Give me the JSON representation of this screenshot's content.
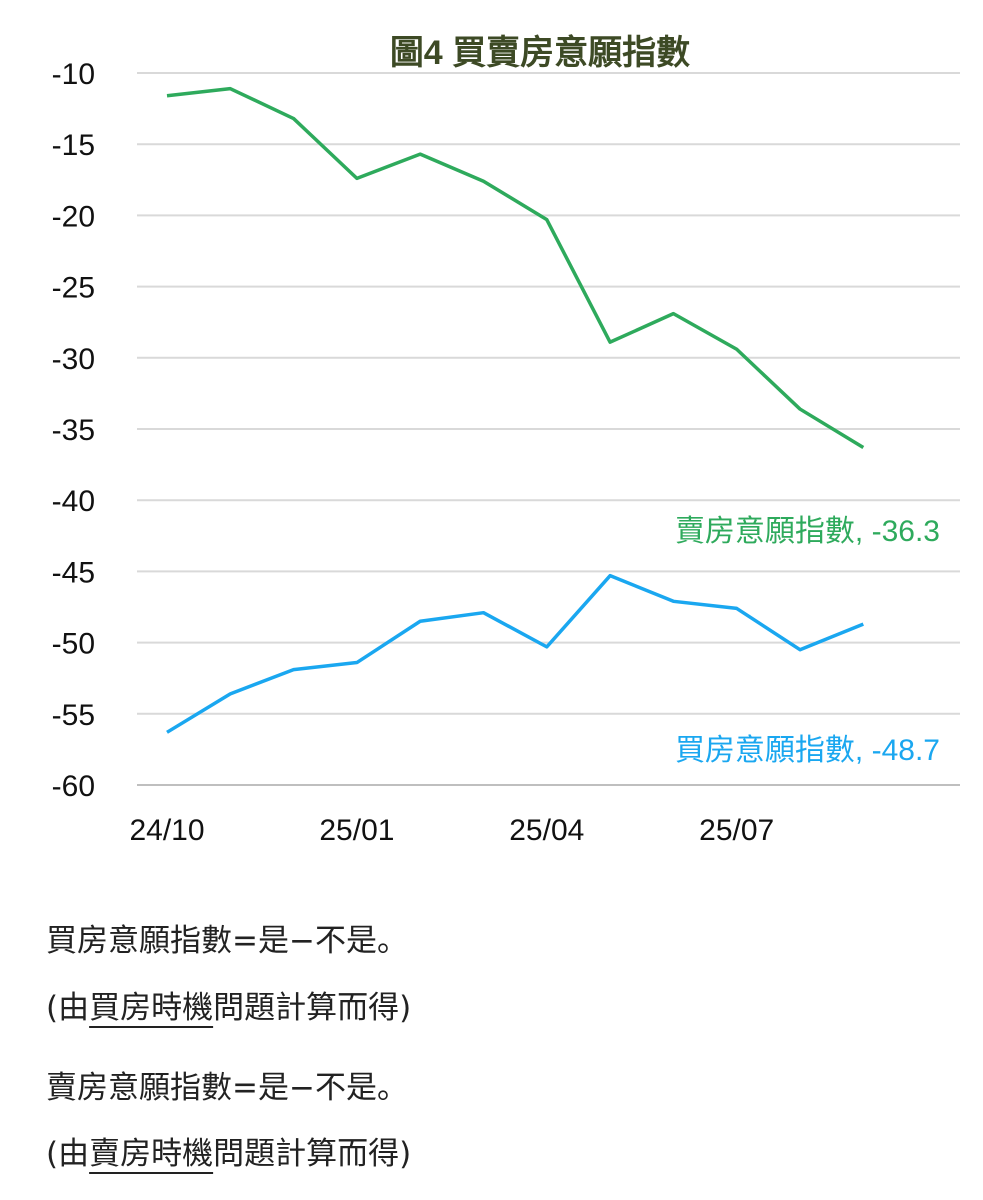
{
  "chart_data": {
    "type": "line",
    "title": "圖4  買賣房意願指數",
    "categories": [
      "24/10",
      "24/11",
      "24/12",
      "25/01",
      "25/02",
      "25/03",
      "25/04",
      "25/05",
      "25/06",
      "25/07",
      "25/08",
      "25/09"
    ],
    "x_tick_labels": [
      "24/10",
      "25/01",
      "25/04",
      "25/07"
    ],
    "y_tick_labels": [
      "-10",
      "-15",
      "-20",
      "-25",
      "-30",
      "-35",
      "-40",
      "-45",
      "-50",
      "-55",
      "-60"
    ],
    "ylim": [
      -60,
      -10
    ],
    "grid": "horizontal",
    "series": [
      {
        "name": "賣房意願指數",
        "color": "#2eaa5c",
        "end_label": "賣房意願指數, -36.3",
        "values": [
          -11.6,
          -11.1,
          -13.2,
          -17.4,
          -15.7,
          -17.6,
          -20.3,
          -28.9,
          -26.9,
          -29.4,
          -33.6,
          -36.3
        ]
      },
      {
        "name": "買房意願指數",
        "color": "#1aa7f0",
        "end_label": "買房意願指數, -48.7",
        "values": [
          -56.3,
          -53.6,
          -51.9,
          -51.4,
          -48.5,
          -47.9,
          -50.3,
          -45.3,
          -47.1,
          -47.6,
          -50.5,
          -48.7
        ]
      }
    ]
  },
  "notes": [
    {
      "formula": "買房意願指數=是−不是。",
      "prefix": "(由",
      "underlined": "買房時機",
      "suffix": "問題計算而得)"
    },
    {
      "formula": "賣房意願指數=是−不是。",
      "prefix": "(由",
      "underlined": "賣房時機",
      "suffix": "問題計算而得)"
    }
  ],
  "colors": {
    "title": "#3d4a25",
    "grid": "#d9d9d9",
    "text": "#111111"
  }
}
